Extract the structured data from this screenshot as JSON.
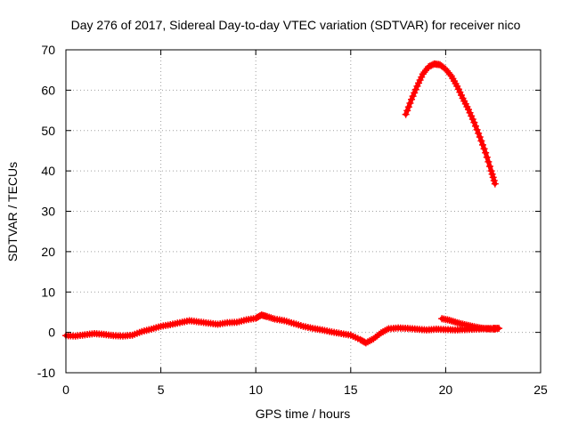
{
  "chart_data": {
    "type": "line",
    "title": "Day 276 of 2017, Sidereal Day-to-day VTEC variation (SDTVAR) for receiver nico",
    "xlabel": "GPS time / hours",
    "ylabel": "SDTVAR / TECUs",
    "xlim": [
      0,
      25
    ],
    "ylim": [
      -10,
      70
    ],
    "xticks": [
      0,
      5,
      10,
      15,
      20,
      25
    ],
    "yticks": [
      -10,
      0,
      10,
      20,
      30,
      40,
      50,
      60,
      70
    ],
    "grid": true,
    "legend": "none",
    "series": [
      {
        "name": "low-elevation arcs",
        "color": "#ff0000",
        "points": [
          [
            0.0,
            -0.8
          ],
          [
            0.5,
            -0.9
          ],
          [
            1.0,
            -0.6
          ],
          [
            1.5,
            -0.3
          ],
          [
            2.0,
            -0.5
          ],
          [
            2.5,
            -0.8
          ],
          [
            3.0,
            -0.9
          ],
          [
            3.5,
            -0.7
          ],
          [
            4.0,
            0.2
          ],
          [
            4.5,
            0.8
          ],
          [
            5.0,
            1.5
          ],
          [
            5.5,
            1.9
          ],
          [
            6.0,
            2.4
          ],
          [
            6.5,
            2.9
          ],
          [
            7.0,
            2.6
          ],
          [
            7.5,
            2.3
          ],
          [
            8.0,
            2.0
          ],
          [
            8.5,
            2.4
          ],
          [
            9.0,
            2.5
          ],
          [
            9.5,
            3.1
          ],
          [
            10.0,
            3.5
          ],
          [
            10.3,
            4.3
          ],
          [
            10.6,
            3.9
          ],
          [
            11.0,
            3.3
          ],
          [
            11.5,
            2.9
          ],
          [
            12.0,
            2.2
          ],
          [
            12.5,
            1.5
          ],
          [
            13.0,
            1.0
          ],
          [
            13.5,
            0.6
          ],
          [
            14.0,
            0.1
          ],
          [
            14.5,
            -0.3
          ],
          [
            15.0,
            -0.7
          ],
          [
            15.5,
            -1.8
          ],
          [
            15.8,
            -2.6
          ],
          [
            16.2,
            -1.6
          ],
          [
            16.6,
            -0.1
          ],
          [
            17.0,
            0.9
          ],
          [
            17.5,
            1.1
          ],
          [
            18.0,
            1.0
          ],
          [
            18.5,
            0.8
          ],
          [
            19.0,
            0.6
          ],
          [
            19.5,
            0.8
          ],
          [
            20.0,
            0.7
          ],
          [
            20.5,
            0.6
          ],
          [
            21.0,
            0.7
          ],
          [
            21.5,
            0.8
          ],
          [
            22.0,
            0.9
          ],
          [
            22.5,
            1.0
          ],
          [
            22.8,
            1.0
          ]
        ]
      },
      {
        "name": "overlapping arc",
        "color": "#ff0000",
        "points": [
          [
            19.8,
            3.4
          ],
          [
            20.2,
            3.0
          ],
          [
            20.6,
            2.4
          ],
          [
            21.0,
            1.9
          ],
          [
            21.4,
            1.5
          ],
          [
            21.8,
            1.1
          ],
          [
            22.2,
            0.9
          ],
          [
            22.6,
            0.8
          ]
        ]
      },
      {
        "name": "high arc",
        "color": "#ff0000",
        "points": [
          [
            17.9,
            54.0
          ],
          [
            18.2,
            57.7
          ],
          [
            18.5,
            61.0
          ],
          [
            18.8,
            64.0
          ],
          [
            19.1,
            65.8
          ],
          [
            19.4,
            66.5
          ],
          [
            19.7,
            66.3
          ],
          [
            20.0,
            65.2
          ],
          [
            20.3,
            63.5
          ],
          [
            20.6,
            61.0
          ],
          [
            20.9,
            58.0
          ],
          [
            21.2,
            55.2
          ],
          [
            21.5,
            52.0
          ],
          [
            21.8,
            48.4
          ],
          [
            22.1,
            44.5
          ],
          [
            22.4,
            40.0
          ],
          [
            22.6,
            36.8
          ]
        ]
      }
    ]
  }
}
